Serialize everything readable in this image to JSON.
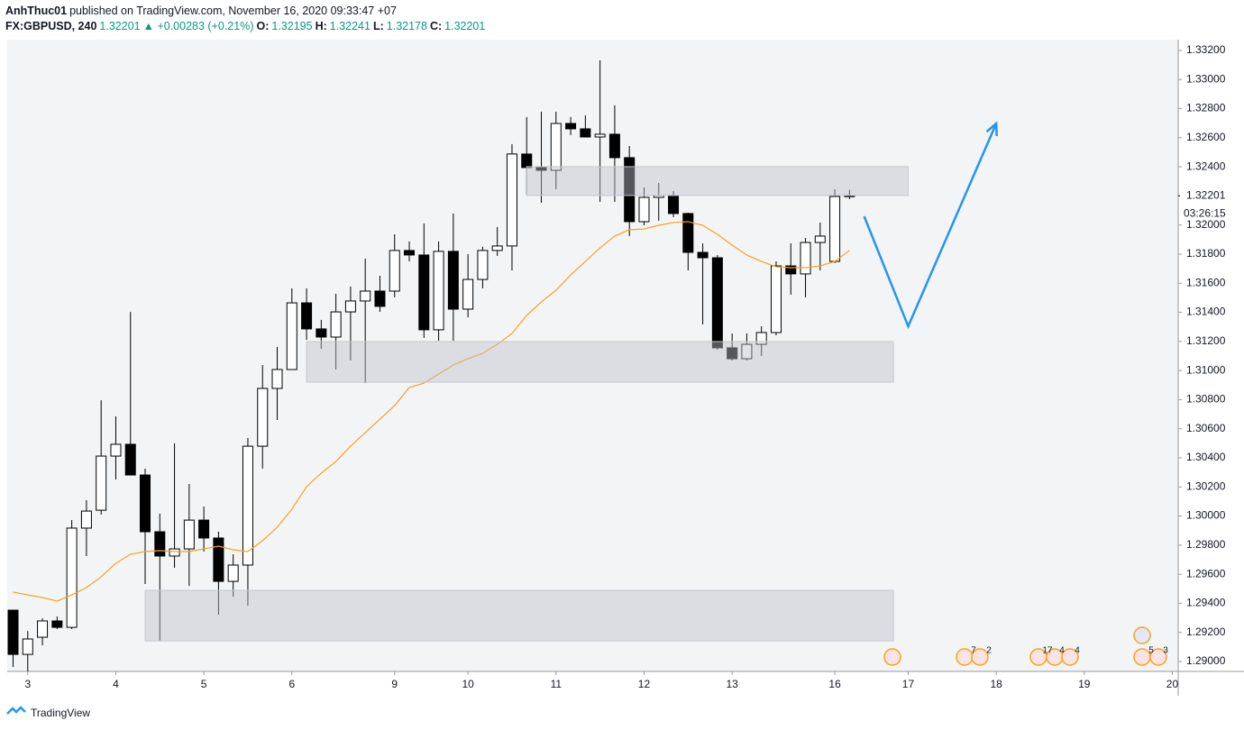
{
  "header": {
    "author": "AnhThuc01",
    "published": "published on TradingView.com, November 16, 2020 09:33:47 +07",
    "symbol": "FX:GBPUSD, 240",
    "change": "▲ +0.00283 (+0.21%)",
    "ohlc_labels": [
      "O:",
      "H:",
      "L:",
      "C:"
    ]
  },
  "footer": {
    "brand": "TradingView"
  },
  "chart_data": {
    "type": "candlestick",
    "candles": [
      [
        1.29353,
        1.29353,
        1.28963,
        1.29049
      ],
      [
        1.29049,
        1.2921,
        1.28932,
        1.29155
      ],
      [
        1.29167,
        1.29297,
        1.29111,
        1.29279
      ],
      [
        1.29279,
        1.2931,
        1.29223,
        1.29235
      ],
      [
        1.29235,
        1.29972,
        1.29223,
        1.29917
      ],
      [
        1.29917,
        1.30109,
        1.29725,
        1.30034
      ],
      [
        1.3004,
        1.30796,
        1.3001,
        1.30412
      ],
      [
        1.30412,
        1.30685,
        1.30251,
        1.30493
      ],
      [
        1.30493,
        1.31403,
        1.30282,
        1.30282
      ],
      [
        1.30282,
        1.30326,
        1.29533,
        1.29892
      ],
      [
        1.29892,
        1.30016,
        1.29142,
        1.29725
      ],
      [
        1.29725,
        1.30499,
        1.29644,
        1.29774
      ],
      [
        1.29774,
        1.3022,
        1.2952,
        1.29972
      ],
      [
        1.29972,
        1.30065,
        1.29756,
        1.29849
      ],
      [
        1.29849,
        1.29892,
        1.29322,
        1.29551
      ],
      [
        1.29551,
        1.29737,
        1.29446,
        1.29663
      ],
      [
        1.29663,
        1.30536,
        1.29384,
        1.3048
      ],
      [
        1.3048,
        1.31038,
        1.30326,
        1.30877
      ],
      [
        1.30877,
        1.31162,
        1.3066,
        1.31007
      ],
      [
        1.31007,
        1.31565,
        1.31007,
        1.31465
      ],
      [
        1.31465,
        1.31565,
        1.31211,
        1.31286
      ],
      [
        1.31286,
        1.31348,
        1.31149,
        1.3123
      ],
      [
        1.3123,
        1.31527,
        1.31007,
        1.31403
      ],
      [
        1.31403,
        1.31577,
        1.31069,
        1.31478
      ],
      [
        1.31478,
        1.31769,
        1.30914,
        1.31546
      ],
      [
        1.31546,
        1.31651,
        1.31403,
        1.31441
      ],
      [
        1.31546,
        1.31936,
        1.31503,
        1.31825
      ],
      [
        1.31825,
        1.31887,
        1.3175,
        1.31794
      ],
      [
        1.31794,
        1.32011,
        1.31224,
        1.3128
      ],
      [
        1.3128,
        1.31887,
        1.31205,
        1.31819
      ],
      [
        1.31819,
        1.32079,
        1.31205,
        1.31422
      ],
      [
        1.31422,
        1.318,
        1.31366,
        1.31626
      ],
      [
        1.31626,
        1.3185,
        1.31565,
        1.31825
      ],
      [
        1.31825,
        1.31986,
        1.31788,
        1.31856
      ],
      [
        1.31856,
        1.32556,
        1.31688,
        1.32488
      ],
      [
        1.32488,
        1.32742,
        1.32209,
        1.32395
      ],
      [
        1.32395,
        1.32779,
        1.32153,
        1.32376
      ],
      [
        1.32376,
        1.32779,
        1.32246,
        1.32698
      ],
      [
        1.32698,
        1.32742,
        1.32618,
        1.32661
      ],
      [
        1.32661,
        1.32754,
        1.32605,
        1.32605
      ],
      [
        1.32605,
        1.33132,
        1.32159,
        1.32624
      ],
      [
        1.32624,
        1.32822,
        1.32159,
        1.32463
      ],
      [
        1.32463,
        1.32543,
        1.31924,
        1.32023
      ],
      [
        1.32023,
        1.32258,
        1.31998,
        1.3219
      ],
      [
        1.3219,
        1.32289,
        1.32029,
        1.32203
      ],
      [
        1.32203,
        1.32234,
        1.32054,
        1.32079
      ],
      [
        1.32079,
        1.32085,
        1.31688,
        1.31812
      ],
      [
        1.31812,
        1.31874,
        1.31317,
        1.31775
      ],
      [
        1.31775,
        1.31794,
        1.31143,
        1.31156
      ],
      [
        1.31156,
        1.31255,
        1.31069,
        1.31081
      ],
      [
        1.31081,
        1.31255,
        1.31069,
        1.3118
      ],
      [
        1.3118,
        1.31304,
        1.311,
        1.31261
      ],
      [
        1.31261,
        1.3175,
        1.31242,
        1.31719
      ],
      [
        1.31719,
        1.31874,
        1.31521,
        1.31664
      ],
      [
        1.31664,
        1.31911,
        1.31503,
        1.3188
      ],
      [
        1.3188,
        1.32017,
        1.31688,
        1.31924
      ],
      [
        1.3175,
        1.32246,
        1.31738,
        1.32196
      ],
      [
        1.32195,
        1.32241,
        1.32178,
        1.32201
      ]
    ],
    "bull_color": "#ffffff",
    "bear_color": "#000000",
    "ma": {
      "color": "#f7a21b",
      "values": [
        1.29477,
        1.29458,
        1.2944,
        1.29415,
        1.29458,
        1.29508,
        1.29582,
        1.29675,
        1.29737,
        1.29756,
        1.29762,
        1.29756,
        1.29756,
        1.29774,
        1.29793,
        1.29768,
        1.29756,
        1.2983,
        1.29923,
        1.30047,
        1.30202,
        1.30295,
        1.30375,
        1.3048,
        1.30573,
        1.30666,
        1.30759,
        1.30883,
        1.30914,
        1.30976,
        1.31038,
        1.31081,
        1.31118,
        1.3118,
        1.31255,
        1.31379,
        1.31472,
        1.31552,
        1.31657,
        1.3175,
        1.31843,
        1.31924,
        1.31967,
        1.31973,
        1.31998,
        1.32017,
        1.32023,
        1.31998,
        1.31936,
        1.31862,
        1.31794,
        1.3175,
        1.31713,
        1.31707,
        1.31707,
        1.31719,
        1.3175,
        1.31825
      ]
    },
    "zones": [
      {
        "x": [
          35,
          61
        ],
        "y": [
          1.32203,
          1.32401
        ]
      },
      {
        "x": [
          20,
          60
        ],
        "y": [
          1.3092,
          1.31199
        ]
      },
      {
        "x": [
          9,
          60
        ],
        "y": [
          1.29142,
          1.29489
        ]
      }
    ],
    "projection": {
      "color": "#2196f3",
      "x": [
        58,
        61,
        67
      ],
      "y": [
        1.3206,
        1.31304,
        1.32698
      ]
    },
    "xlim": [
      -0.4,
      79.4
    ],
    "xticks": [
      {
        "value": 1,
        "label": "3"
      },
      {
        "value": 7,
        "label": "4"
      },
      {
        "value": 13,
        "label": "5"
      },
      {
        "value": 19,
        "label": "6"
      },
      {
        "value": 26,
        "label": "9"
      },
      {
        "value": 31,
        "label": "10"
      },
      {
        "value": 37,
        "label": "11"
      },
      {
        "value": 43,
        "label": "12"
      },
      {
        "value": 49,
        "label": "13"
      },
      {
        "value": 56,
        "label": "16"
      },
      {
        "value": 61,
        "label": "17"
      },
      {
        "value": 67,
        "label": "18"
      },
      {
        "value": 73,
        "label": "19"
      },
      {
        "value": 79,
        "label": "20"
      }
    ],
    "ylim": [
      1.28932,
      1.33274
    ],
    "yticks": [
      {
        "value": 1.29,
        "label": "1.29000"
      },
      {
        "value": 1.292,
        "label": "1.29200"
      },
      {
        "value": 1.294,
        "label": "1.29400"
      },
      {
        "value": 1.296,
        "label": "1.29600"
      },
      {
        "value": 1.298,
        "label": "1.29800"
      },
      {
        "value": 1.3,
        "label": "1.30000"
      },
      {
        "value": 1.302,
        "label": "1.30200"
      },
      {
        "value": 1.304,
        "label": "1.30400"
      },
      {
        "value": 1.306,
        "label": "1.30600"
      },
      {
        "value": 1.308,
        "label": "1.30800"
      },
      {
        "value": 1.31,
        "label": "1.31000"
      },
      {
        "value": 1.312,
        "label": "1.31200"
      },
      {
        "value": 1.314,
        "label": "1.31400"
      },
      {
        "value": 1.316,
        "label": "1.31600"
      },
      {
        "value": 1.318,
        "label": "1.31800"
      },
      {
        "value": 1.32,
        "label": "1.32000"
      },
      {
        "value": 1.322,
        "label": "1.32200"
      },
      {
        "value": 1.324,
        "label": "1.32400"
      },
      {
        "value": 1.326,
        "label": "1.32600"
      },
      {
        "value": 1.328,
        "label": "1.32800"
      },
      {
        "value": 1.33,
        "label": "1.33000"
      },
      {
        "value": 1.332,
        "label": "1.33200"
      }
    ],
    "countdown": "03:26:15",
    "events": [
      "7",
      "2",
      "17",
      "4",
      "4",
      "5",
      "3"
    ]
  }
}
